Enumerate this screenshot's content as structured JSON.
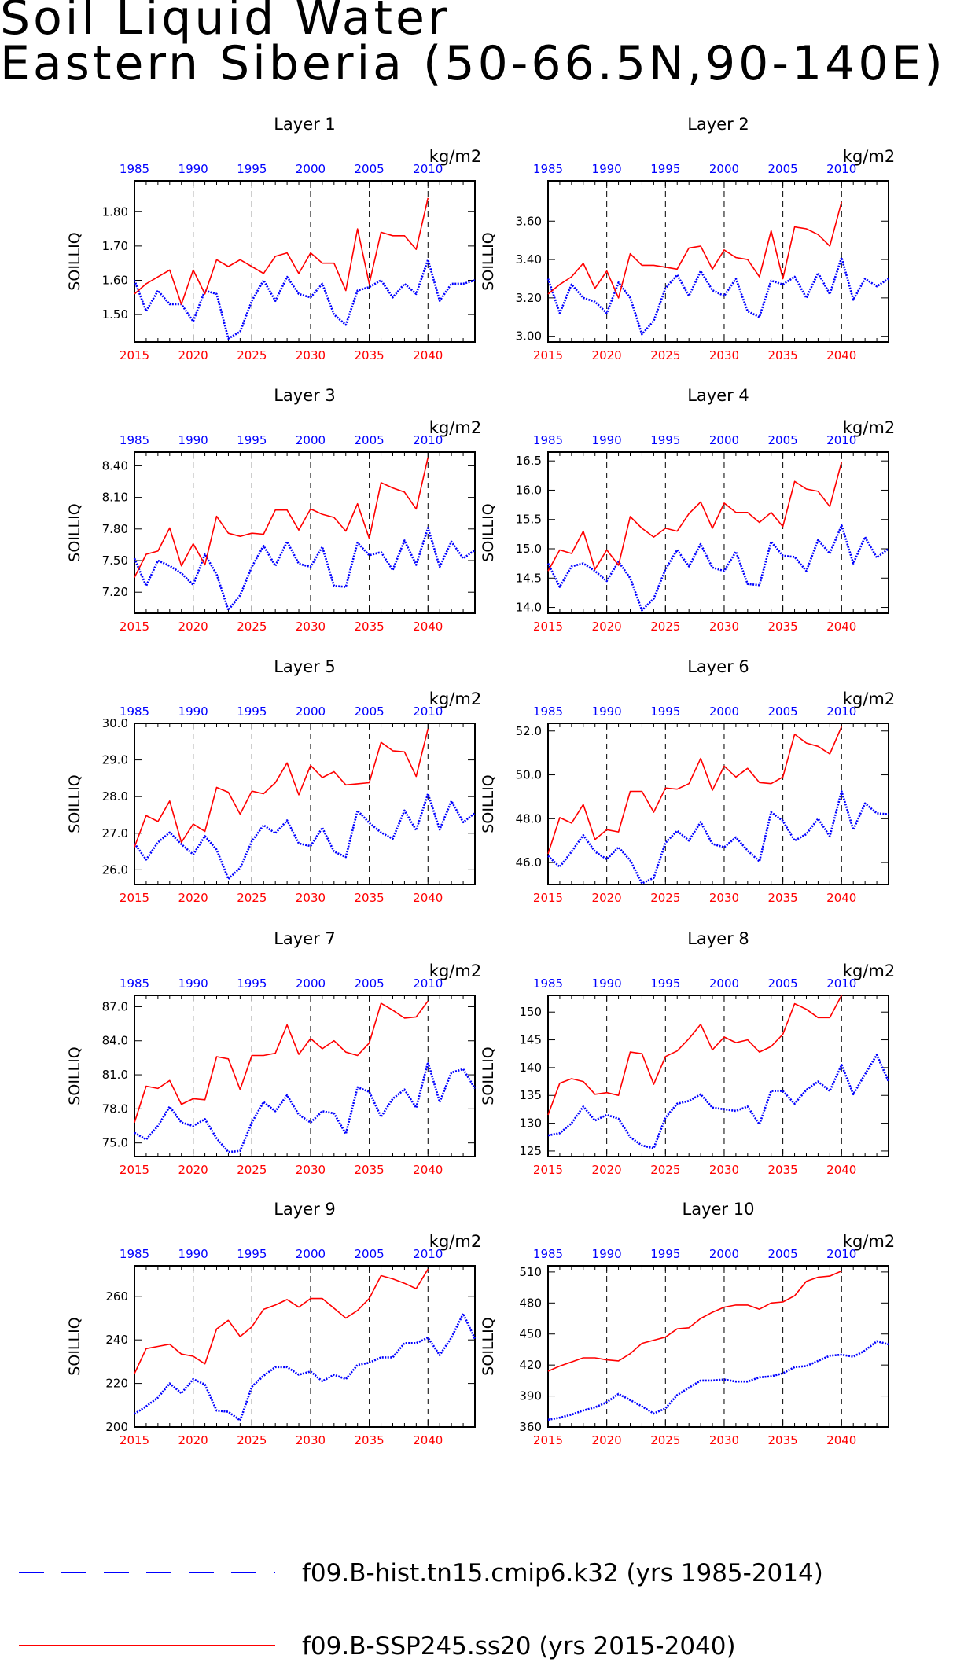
{
  "title": {
    "line1": "Soil Liquid Water",
    "line2": "Eastern Siberia (50-66.5N,90-140E)"
  },
  "colors": {
    "historical": "#0000ff",
    "future": "#ff0000"
  },
  "legend": {
    "historical_label": "f09.B-hist.tn15.cmip6.k32 (yrs 1985-2014)",
    "future_label": "f09.B-SSP245.ss20 (yrs 2015-2040)"
  },
  "chart_data": [
    {
      "type": "line",
      "title": "Layer 1",
      "units": "kg/m2",
      "ylabel": "SOILLIQ",
      "ylim": [
        1.42,
        1.89
      ],
      "yticks": [
        "1.50",
        "1.60",
        "1.70",
        "1.80"
      ],
      "top_axis": {
        "ticks": [
          "1985",
          "1990",
          "1995",
          "2000",
          "2005",
          "2010"
        ]
      },
      "bottom_axis": {
        "ticks": [
          "2015",
          "2020",
          "2025",
          "2030",
          "2035",
          "2040"
        ]
      },
      "series": [
        {
          "name": "f09.B-hist.tn15.cmip6.k32 (yrs 1985-2014)",
          "x_start": 1985,
          "values": [
            1.6,
            1.51,
            1.57,
            1.53,
            1.53,
            1.48,
            1.57,
            1.56,
            1.43,
            1.45,
            1.54,
            1.6,
            1.54,
            1.61,
            1.56,
            1.55,
            1.59,
            1.5,
            1.47,
            1.57,
            1.58,
            1.6,
            1.55,
            1.59,
            1.56,
            1.66,
            1.54,
            1.59,
            1.59,
            1.6
          ]
        },
        {
          "name": "f09.B-SSP245.ss20 (yrs 2015-2040)",
          "x_start": 2015,
          "values": [
            1.56,
            1.59,
            1.61,
            1.63,
            1.53,
            1.63,
            1.56,
            1.66,
            1.64,
            1.66,
            1.64,
            1.62,
            1.67,
            1.68,
            1.62,
            1.68,
            1.65,
            1.65,
            1.57,
            1.75,
            1.59,
            1.74,
            1.73,
            1.73,
            1.69,
            1.84
          ]
        }
      ]
    },
    {
      "type": "line",
      "title": "Layer 2",
      "units": "kg/m2",
      "ylabel": "SOILLIQ",
      "ylim": [
        2.97,
        3.81
      ],
      "yticks": [
        "3.00",
        "3.20",
        "3.40",
        "3.60"
      ],
      "top_axis": {
        "ticks": [
          "1985",
          "1990",
          "1995",
          "2000",
          "2005",
          "2010"
        ]
      },
      "bottom_axis": {
        "ticks": [
          "2015",
          "2020",
          "2025",
          "2030",
          "2035",
          "2040"
        ]
      },
      "series": [
        {
          "name": "f09.B-hist.tn15.cmip6.k32 (yrs 1985-2014)",
          "x_start": 1985,
          "values": [
            3.3,
            3.12,
            3.27,
            3.2,
            3.18,
            3.12,
            3.28,
            3.2,
            3.01,
            3.08,
            3.25,
            3.32,
            3.21,
            3.34,
            3.24,
            3.21,
            3.3,
            3.13,
            3.1,
            3.29,
            3.27,
            3.31,
            3.2,
            3.33,
            3.22,
            3.41,
            3.19,
            3.3,
            3.26,
            3.3
          ]
        },
        {
          "name": "f09.B-SSP245.ss20 (yrs 2015-2040)",
          "x_start": 2015,
          "values": [
            3.22,
            3.27,
            3.31,
            3.38,
            3.25,
            3.34,
            3.2,
            3.43,
            3.37,
            3.37,
            3.36,
            3.35,
            3.46,
            3.47,
            3.35,
            3.45,
            3.41,
            3.4,
            3.31,
            3.55,
            3.3,
            3.57,
            3.56,
            3.53,
            3.47,
            3.7
          ]
        }
      ]
    },
    {
      "type": "line",
      "title": "Layer 3",
      "units": "kg/m2",
      "ylabel": "SOILLIQ",
      "ylim": [
        7.0,
        8.53
      ],
      "yticks": [
        "7.20",
        "7.50",
        "7.80",
        "8.10",
        "8.40"
      ],
      "top_axis": {
        "ticks": [
          "1985",
          "1990",
          "1995",
          "2000",
          "2005",
          "2010"
        ]
      },
      "bottom_axis": {
        "ticks": [
          "2015",
          "2020",
          "2025",
          "2030",
          "2035",
          "2040"
        ]
      },
      "series": [
        {
          "name": "f09.B-hist.tn15.cmip6.k32 (yrs 1985-2014)",
          "x_start": 1985,
          "values": [
            7.52,
            7.26,
            7.5,
            7.45,
            7.38,
            7.27,
            7.56,
            7.37,
            7.03,
            7.17,
            7.44,
            7.64,
            7.45,
            7.68,
            7.47,
            7.44,
            7.63,
            7.26,
            7.25,
            7.67,
            7.55,
            7.58,
            7.41,
            7.69,
            7.46,
            7.81,
            7.44,
            7.68,
            7.52,
            7.6
          ]
        },
        {
          "name": "f09.B-SSP245.ss20 (yrs 2015-2040)",
          "x_start": 2015,
          "values": [
            7.34,
            7.56,
            7.59,
            7.81,
            7.45,
            7.66,
            7.46,
            7.92,
            7.76,
            7.73,
            7.76,
            7.75,
            7.98,
            7.98,
            7.79,
            7.99,
            7.94,
            7.91,
            7.78,
            8.04,
            7.71,
            8.24,
            8.19,
            8.15,
            7.99,
            8.48
          ]
        }
      ]
    },
    {
      "type": "line",
      "title": "Layer 4",
      "units": "kg/m2",
      "ylabel": "SOILLIQ",
      "ylim": [
        13.9,
        16.65
      ],
      "yticks": [
        "14.0",
        "14.5",
        "15.0",
        "15.5",
        "16.0",
        "16.5"
      ],
      "top_axis": {
        "ticks": [
          "1985",
          "1990",
          "1995",
          "2000",
          "2005",
          "2010"
        ]
      },
      "bottom_axis": {
        "ticks": [
          "2015",
          "2020",
          "2025",
          "2030",
          "2035",
          "2040"
        ]
      },
      "series": [
        {
          "name": "f09.B-hist.tn15.cmip6.k32 (yrs 1985-2014)",
          "x_start": 1985,
          "values": [
            14.75,
            14.35,
            14.7,
            14.75,
            14.62,
            14.45,
            14.78,
            14.5,
            13.95,
            14.15,
            14.65,
            14.98,
            14.7,
            15.08,
            14.68,
            14.62,
            14.95,
            14.4,
            14.38,
            15.12,
            14.88,
            14.86,
            14.62,
            15.15,
            14.92,
            15.4,
            14.75,
            15.2,
            14.85,
            15.0
          ]
        },
        {
          "name": "f09.B-SSP245.ss20 (yrs 2015-2040)",
          "x_start": 2015,
          "values": [
            14.62,
            14.98,
            14.92,
            15.3,
            14.65,
            14.98,
            14.72,
            15.55,
            15.35,
            15.2,
            15.35,
            15.3,
            15.6,
            15.8,
            15.35,
            15.78,
            15.62,
            15.62,
            15.45,
            15.62,
            15.38,
            16.15,
            16.02,
            15.98,
            15.72,
            16.48
          ]
        }
      ]
    },
    {
      "type": "line",
      "title": "Layer 5",
      "units": "kg/m2",
      "ylabel": "SOILLIQ",
      "ylim": [
        25.6,
        30.0
      ],
      "yticks": [
        "26.0",
        "27.0",
        "28.0",
        "29.0",
        "30.0"
      ],
      "top_axis": {
        "ticks": [
          "1985",
          "1990",
          "1995",
          "2000",
          "2005",
          "2010"
        ]
      },
      "bottom_axis": {
        "ticks": [
          "2015",
          "2020",
          "2025",
          "2030",
          "2035",
          "2040"
        ]
      },
      "series": [
        {
          "name": "f09.B-hist.tn15.cmip6.k32 (yrs 1985-2014)",
          "x_start": 1985,
          "values": [
            26.72,
            26.28,
            26.75,
            27.02,
            26.7,
            26.42,
            26.92,
            26.55,
            25.75,
            26.05,
            26.78,
            27.22,
            27.0,
            27.35,
            26.72,
            26.65,
            27.15,
            26.5,
            26.35,
            27.62,
            27.28,
            27.02,
            26.85,
            27.62,
            27.08,
            28.08,
            27.1,
            27.88,
            27.3,
            27.55
          ]
        },
        {
          "name": "f09.B-SSP245.ss20 (yrs 2015-2040)",
          "x_start": 2015,
          "values": [
            26.62,
            27.48,
            27.32,
            27.88,
            26.75,
            27.25,
            27.05,
            28.25,
            28.12,
            27.52,
            28.15,
            28.08,
            28.38,
            28.92,
            28.05,
            28.85,
            28.52,
            28.68,
            28.32,
            28.35,
            28.38,
            29.48,
            29.25,
            29.22,
            28.55,
            29.85
          ]
        }
      ]
    },
    {
      "type": "line",
      "title": "Layer 6",
      "units": "kg/m2",
      "ylabel": "SOILLIQ",
      "ylim": [
        45.0,
        52.35
      ],
      "yticks": [
        "46.0",
        "48.0",
        "50.0",
        "52.0"
      ],
      "top_axis": {
        "ticks": [
          "1985",
          "1990",
          "1995",
          "2000",
          "2005",
          "2010"
        ]
      },
      "bottom_axis": {
        "ticks": [
          "2015",
          "2020",
          "2025",
          "2030",
          "2035",
          "2040"
        ]
      },
      "series": [
        {
          "name": "f09.B-hist.tn15.cmip6.k32 (yrs 1985-2014)",
          "x_start": 1985,
          "values": [
            46.3,
            45.8,
            46.5,
            47.25,
            46.5,
            46.15,
            46.7,
            46.1,
            45.05,
            45.3,
            46.9,
            47.45,
            47.0,
            47.85,
            46.85,
            46.7,
            47.15,
            46.55,
            46.05,
            48.3,
            47.9,
            47.0,
            47.3,
            48.0,
            47.2,
            49.25,
            47.5,
            48.7,
            48.25,
            48.2
          ]
        },
        {
          "name": "f09.B-SSP245.ss20 (yrs 2015-2040)",
          "x_start": 2015,
          "values": [
            46.4,
            48.05,
            47.8,
            48.65,
            47.05,
            47.5,
            47.4,
            49.25,
            49.25,
            48.3,
            49.4,
            49.35,
            49.6,
            50.75,
            49.3,
            50.4,
            49.9,
            50.3,
            49.65,
            49.6,
            49.9,
            51.85,
            51.45,
            51.3,
            50.95,
            52.2
          ]
        }
      ]
    },
    {
      "type": "line",
      "title": "Layer 7",
      "units": "kg/m2",
      "ylabel": "SOILLIQ",
      "ylim": [
        73.8,
        88.0
      ],
      "yticks": [
        "75.0",
        "78.0",
        "81.0",
        "84.0",
        "87.0"
      ],
      "top_axis": {
        "ticks": [
          "1985",
          "1990",
          "1995",
          "2000",
          "2005",
          "2010"
        ]
      },
      "bottom_axis": {
        "ticks": [
          "2015",
          "2020",
          "2025",
          "2030",
          "2035",
          "2040"
        ]
      },
      "series": [
        {
          "name": "f09.B-hist.tn15.cmip6.k32 (yrs 1985-2014)",
          "x_start": 1985,
          "values": [
            75.9,
            75.3,
            76.5,
            78.2,
            76.8,
            76.5,
            77.1,
            75.4,
            74.2,
            74.3,
            76.8,
            78.6,
            77.8,
            79.2,
            77.5,
            76.8,
            77.8,
            77.6,
            75.8,
            79.9,
            79.5,
            77.3,
            78.9,
            79.7,
            78.1,
            82.1,
            78.6,
            81.2,
            81.5,
            79.8
          ]
        },
        {
          "name": "f09.B-SSP245.ss20 (yrs 2015-2040)",
          "x_start": 2015,
          "values": [
            76.8,
            80.0,
            79.8,
            80.5,
            78.4,
            78.9,
            78.8,
            82.6,
            82.4,
            79.7,
            82.7,
            82.7,
            82.9,
            85.4,
            82.8,
            84.2,
            83.3,
            84.0,
            83.0,
            82.7,
            83.8,
            87.3,
            86.7,
            86.0,
            86.1,
            87.5
          ]
        }
      ]
    },
    {
      "type": "line",
      "title": "Layer 8",
      "units": "kg/m2",
      "ylabel": "SOILLIQ",
      "ylim": [
        124.0,
        153.0
      ],
      "yticks": [
        "125",
        "130",
        "135",
        "140",
        "145",
        "150"
      ],
      "top_axis": {
        "ticks": [
          "1985",
          "1990",
          "1995",
          "2000",
          "2005",
          "2010"
        ]
      },
      "bottom_axis": {
        "ticks": [
          "2015",
          "2020",
          "2025",
          "2030",
          "2035",
          "2040"
        ]
      },
      "series": [
        {
          "name": "f09.B-hist.tn15.cmip6.k32 (yrs 1985-2014)",
          "x_start": 1985,
          "values": [
            127.8,
            128.2,
            130.0,
            133.0,
            130.5,
            131.5,
            130.8,
            127.5,
            126.0,
            125.5,
            131.0,
            133.5,
            134.0,
            135.2,
            132.8,
            132.5,
            132.2,
            133.0,
            129.8,
            135.8,
            135.8,
            133.5,
            136.0,
            137.5,
            135.8,
            140.5,
            135.2,
            138.8,
            142.3,
            137.5
          ]
        },
        {
          "name": "f09.B-SSP245.ss20 (yrs 2015-2040)",
          "x_start": 2015,
          "values": [
            131.5,
            137.2,
            138.0,
            137.5,
            135.2,
            135.5,
            135.0,
            142.8,
            142.5,
            137.0,
            142.0,
            143.0,
            145.2,
            147.8,
            143.2,
            145.5,
            144.5,
            145.0,
            142.8,
            143.8,
            146.0,
            151.5,
            150.5,
            149.0,
            149.0,
            153.0
          ]
        }
      ]
    },
    {
      "type": "line",
      "title": "Layer 9",
      "units": "kg/m2",
      "ylabel": "SOILLIQ",
      "ylim": [
        200.0,
        274.0
      ],
      "yticks": [
        "200",
        "220",
        "240",
        "260"
      ],
      "top_axis": {
        "ticks": [
          "1985",
          "1990",
          "1995",
          "2000",
          "2005",
          "2010"
        ]
      },
      "bottom_axis": {
        "ticks": [
          "2015",
          "2020",
          "2025",
          "2030",
          "2035",
          "2040"
        ]
      },
      "series": [
        {
          "name": "f09.B-hist.tn15.cmip6.k32 (yrs 1985-2014)",
          "x_start": 1985,
          "values": [
            206.0,
            209.5,
            213.5,
            220.0,
            215.5,
            222.0,
            219.5,
            207.5,
            207.0,
            203.0,
            218.5,
            223.5,
            227.5,
            227.5,
            224.0,
            225.5,
            221.0,
            224.0,
            222.0,
            228.5,
            229.5,
            232.0,
            232.0,
            238.5,
            238.5,
            241.0,
            233.0,
            241.0,
            252.0,
            240.5
          ]
        },
        {
          "name": "f09.B-SSP245.ss20 (yrs 2015-2040)",
          "x_start": 2015,
          "values": [
            224.5,
            236.0,
            237.0,
            238.0,
            233.5,
            232.5,
            229.0,
            245.0,
            249.0,
            241.5,
            246.0,
            254.0,
            256.0,
            258.5,
            255.0,
            259.0,
            259.0,
            254.5,
            250.0,
            253.5,
            259.0,
            269.5,
            268.0,
            266.0,
            263.5,
            272.5
          ]
        }
      ]
    },
    {
      "type": "line",
      "title": "Layer 10",
      "units": "kg/m2",
      "ylabel": "SOILLIQ",
      "ylim": [
        360.0,
        516.0
      ],
      "yticks": [
        "360",
        "390",
        "420",
        "450",
        "480",
        "510"
      ],
      "top_axis": {
        "ticks": [
          "1985",
          "1990",
          "1995",
          "2000",
          "2005",
          "2010"
        ]
      },
      "bottom_axis": {
        "ticks": [
          "2015",
          "2020",
          "2025",
          "2030",
          "2035",
          "2040"
        ]
      },
      "series": [
        {
          "name": "f09.B-hist.tn15.cmip6.k32 (yrs 1985-2014)",
          "x_start": 1985,
          "values": [
            367.0,
            369.0,
            372.0,
            376.0,
            379.0,
            384.0,
            392.0,
            386.0,
            380.0,
            373.0,
            378.0,
            391.0,
            398.0,
            405.0,
            405.0,
            406.0,
            404.0,
            404.0,
            408.0,
            409.0,
            412.0,
            418.0,
            419.0,
            424.0,
            429.0,
            430.0,
            428.0,
            434.0,
            443.0,
            440.0
          ]
        },
        {
          "name": "f09.B-SSP245.ss20 (yrs 2015-2040)",
          "x_start": 2015,
          "values": [
            414.0,
            419.0,
            423.0,
            427.0,
            427.0,
            425.0,
            424.0,
            431.0,
            441.0,
            444.0,
            447.0,
            455.0,
            456.0,
            465.0,
            471.0,
            476.0,
            478.0,
            478.0,
            474.0,
            480.0,
            481.0,
            487.0,
            501.0,
            505.0,
            506.0,
            511.0
          ]
        }
      ]
    }
  ]
}
